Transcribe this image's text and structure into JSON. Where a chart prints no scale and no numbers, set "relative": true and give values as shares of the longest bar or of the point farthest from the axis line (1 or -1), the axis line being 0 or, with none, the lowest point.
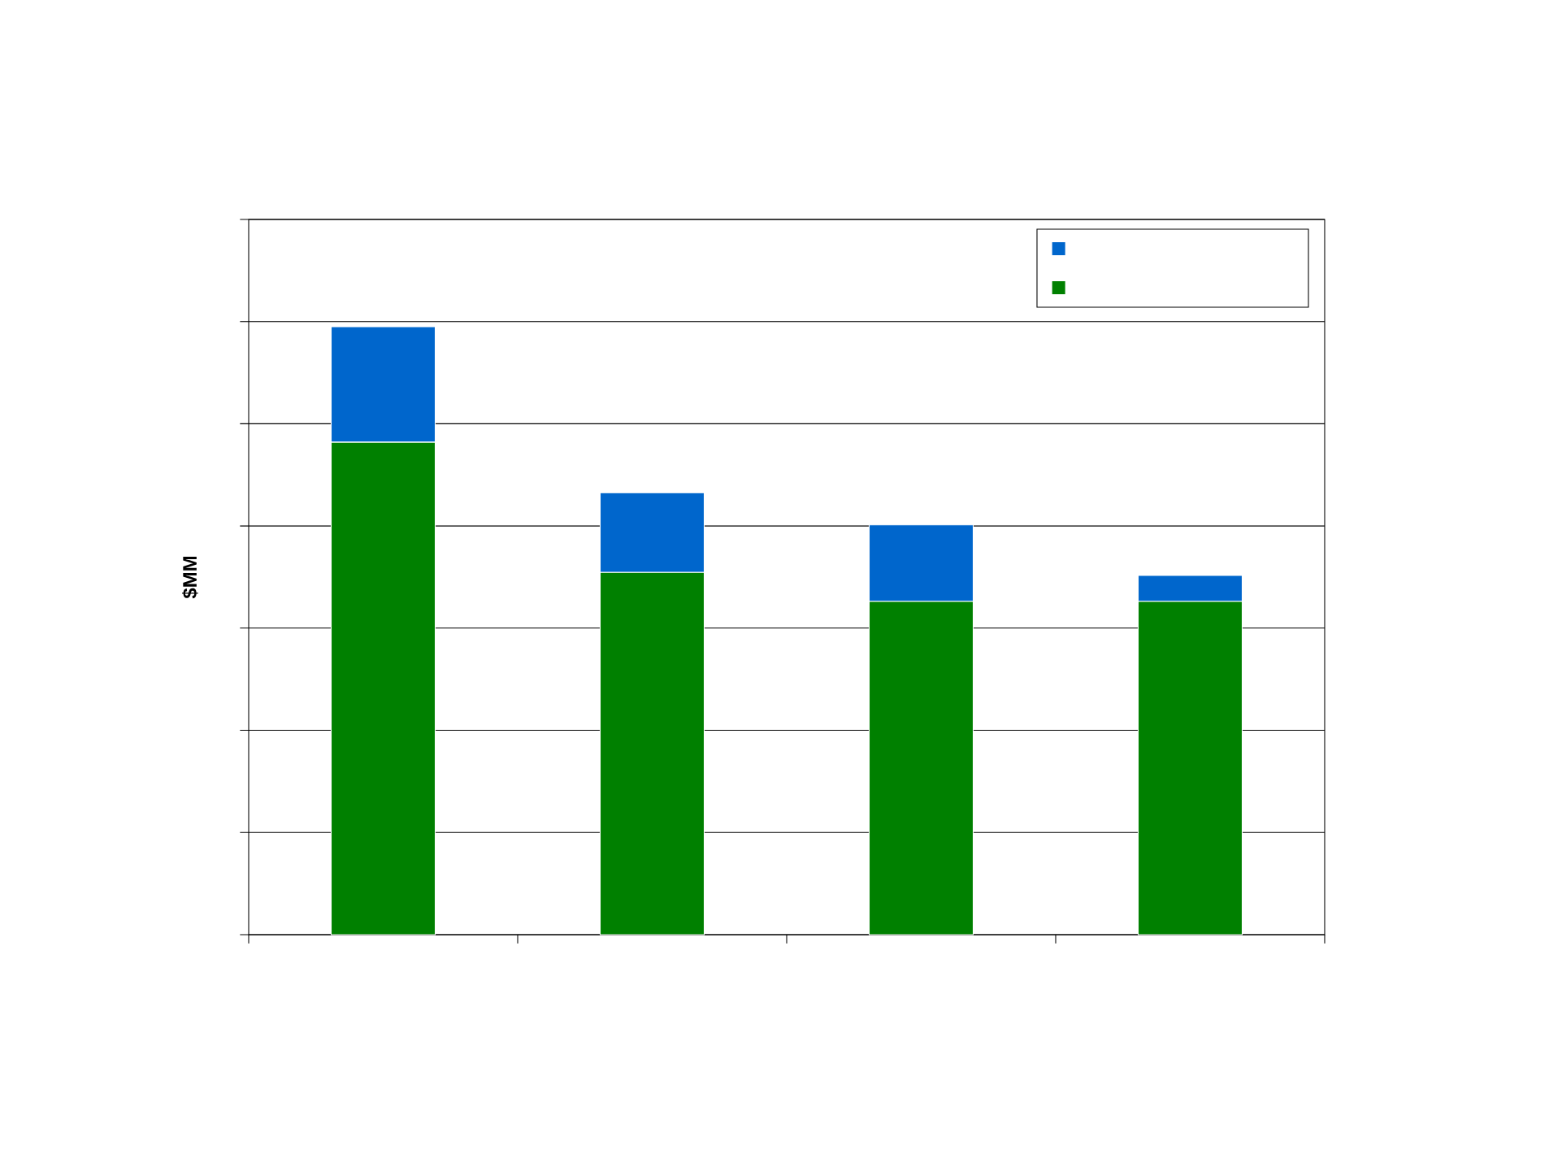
{
  "chart_data": {
    "type": "bar",
    "ylabel": "$MM",
    "categories": [
      null,
      null,
      null,
      null
    ],
    "stacked": true,
    "relative": true,
    "grid": "y",
    "series": [
      {
        "color": "#008000",
        "values": [
          0.81,
          0.596,
          0.548,
          0.548
        ]
      },
      {
        "color": "#0066cc",
        "values": [
          0.19,
          0.131,
          0.126,
          0.043
        ]
      }
    ]
  }
}
